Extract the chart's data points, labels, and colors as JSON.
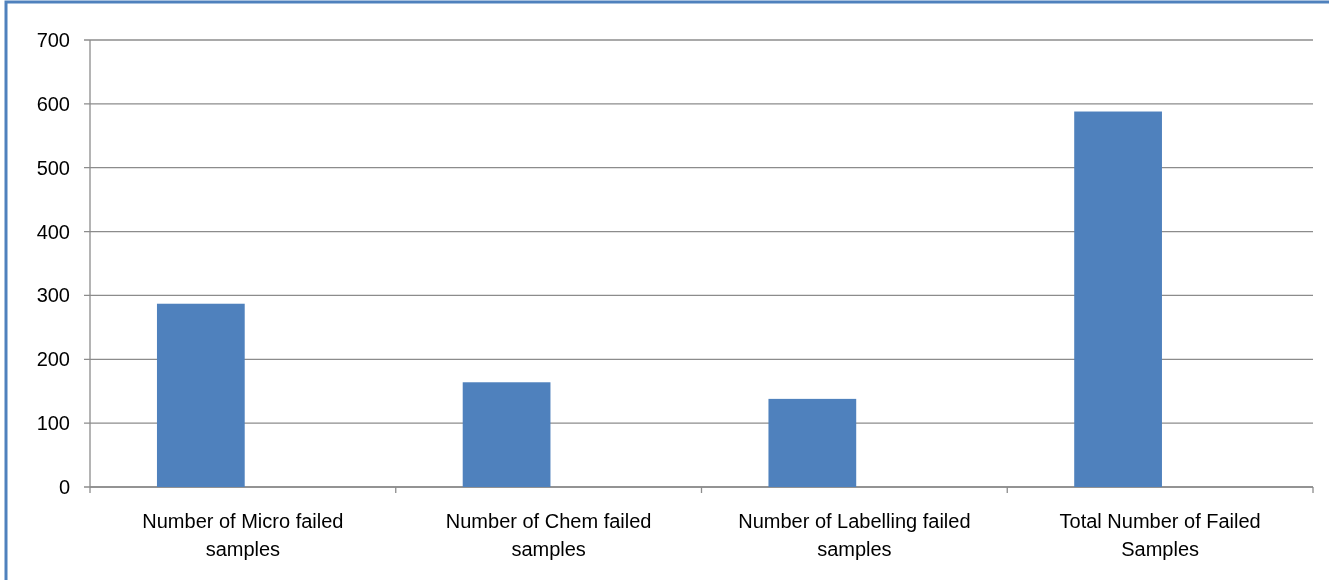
{
  "chart_data": {
    "type": "bar",
    "categories": [
      "Number of Micro failed samples",
      "Number of Chem failed samples",
      "Number of Labelling failed samples",
      "Total Number of Failed Samples"
    ],
    "values": [
      287,
      164,
      138,
      588
    ],
    "color": "#4f81bd",
    "ylim": [
      0,
      700
    ],
    "yticks": [
      0,
      100,
      200,
      300,
      400,
      500,
      600,
      700
    ],
    "grid": "y"
  }
}
